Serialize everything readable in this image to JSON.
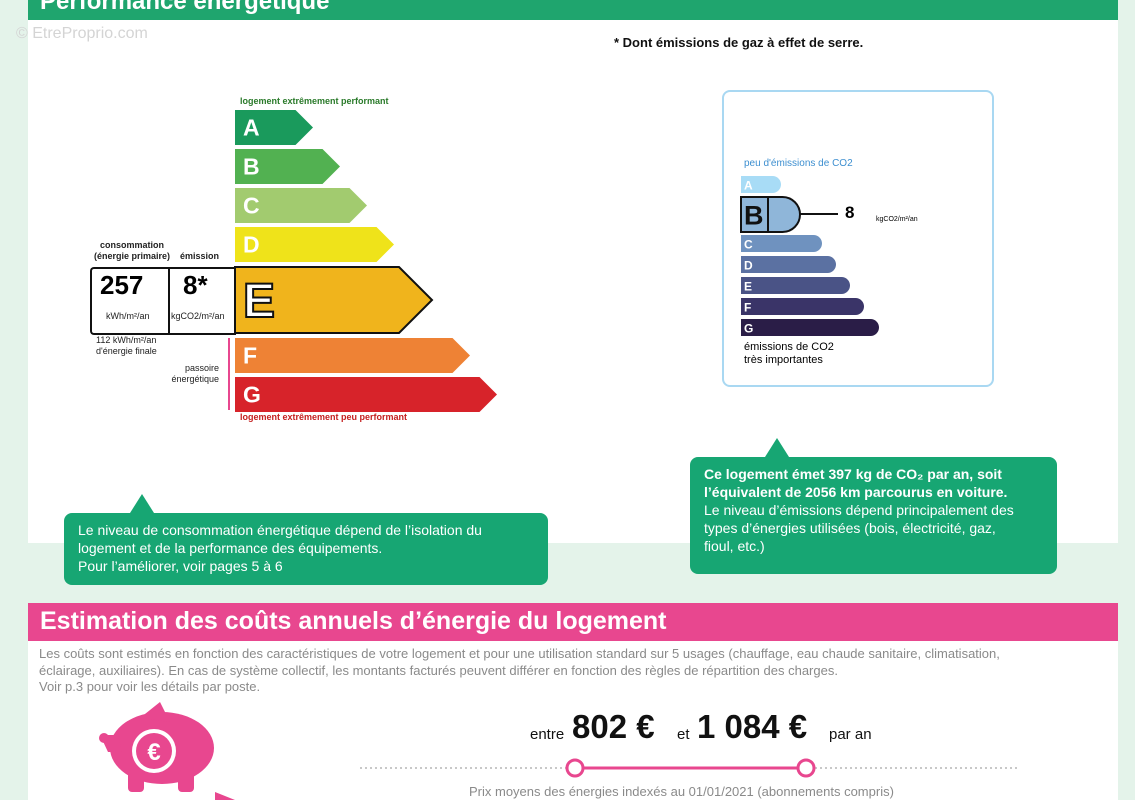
{
  "header": {
    "title": "Performance énergétique",
    "watermark": "© EtreProprio.com",
    "footnote": "* Dont émissions de gaz à effet de serre."
  },
  "energy_label": {
    "top_caption": "logement extrêmement performant",
    "bottom_caption": "logement extrêmement peu performant",
    "classes": [
      "A",
      "B",
      "C",
      "D",
      "E",
      "F",
      "G"
    ],
    "colors": [
      "#1a9a5c",
      "#52b151",
      "#a2cb6f",
      "#efe31a",
      "#f0b41c",
      "#ee8235",
      "#d7232a"
    ],
    "current_class": "E",
    "consumption_caption": [
      "consommation",
      "(énergie primaire)"
    ],
    "emission_caption": "émission",
    "consumption": "257",
    "emission": "8*",
    "consumption_unit": "kWh/m²/an",
    "emission_unit": "kgCO2/m²/an",
    "final_energy": [
      "112 kWh/m²/an",
      "d'énergie finale"
    ],
    "passoire": [
      "passoire",
      "énergétique"
    ]
  },
  "co2_label": {
    "top_caption": "peu d'émissions de CO2",
    "classes": [
      "A",
      "B",
      "C",
      "D",
      "E",
      "F",
      "G"
    ],
    "colors": [
      "#a8dcf6",
      "#8fb6d9",
      "#6f92bf",
      "#5b71a2",
      "#4a5386",
      "#3a3468",
      "#2a1d47"
    ],
    "current_class": "B",
    "value": "8",
    "unit": "kgCO2/m²/an",
    "bottom_caption": [
      "émissions de CO2",
      "très importantes"
    ]
  },
  "callouts": {
    "energy": [
      "Le niveau de consommation énergétique dépend de l’isolation du",
      "logement et de la performance des équipements.",
      "Pour l’améliorer, voir pages 5 à 6"
    ],
    "co2_bold": [
      "Ce logement émet 397  kg de CO₂ par an, soit",
      "l’équivalent de 2056 km parcourus en voiture."
    ],
    "co2_text": [
      "Le niveau d’émissions dépend principalement des",
      "types d’énergies utilisées (bois, électricité, gaz,",
      "fioul, etc.)"
    ]
  },
  "costs": {
    "title": "Estimation des coûts annuels d’énergie du logement",
    "paragraph": [
      "Les coûts sont estimés en fonction des caractéristiques de votre logement et pour une utilisation standard sur 5 usages (chauffage, eau chaude sanitaire, climatisation,",
      "éclairage, auxiliaires). En cas de système collectif, les montants facturés peuvent différer en fonction des règles de répartition des charges.",
      "Voir p.3 pour voir les détails par poste."
    ],
    "icon_symbol": "€",
    "from_word": "entre",
    "min": "802 €",
    "and_word": "et",
    "max": "1 084 €",
    "per": "par an",
    "note": "Prix moyens des énergies indexés au 01/01/2021  (abonnements compris)"
  }
}
